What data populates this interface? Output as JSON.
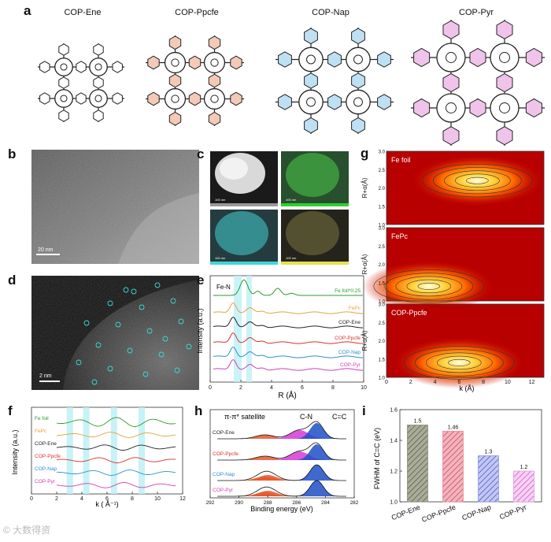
{
  "panels": {
    "a": {
      "label": "a",
      "titles": [
        {
          "text": "COP-Ene",
          "color": "#222222",
          "tint": "#ffffff"
        },
        {
          "text": "COP-Ppcfe",
          "color": "#d9312c",
          "tint": "#f3c9b8"
        },
        {
          "text": "COP-Nap",
          "color": "#3aa3d6",
          "tint": "#bfe0f2"
        },
        {
          "text": "COP-Pyr",
          "color": "#d23fb6",
          "tint": "#efc3ea"
        }
      ]
    },
    "b": {
      "label": "b",
      "scalebar": "20 nm"
    },
    "c": {
      "label": "c",
      "scalebar": "100 nm",
      "tiles": [
        {
          "color": "#2a2a2a",
          "bar": "#bbbbbb"
        },
        {
          "color": "#1c6a1c",
          "bar": "#2fd12f"
        },
        {
          "color": "#1f5a5a",
          "bar": "#3fd7d7"
        },
        {
          "color": "#2d2a14",
          "bar": "#e6e14a"
        }
      ]
    },
    "d": {
      "label": "d",
      "scalebar": "2 nm"
    },
    "e": {
      "label": "e",
      "annotation": "Fe-N",
      "xlabel": "R (Å)",
      "ylabel": "Intensity (a.u.)",
      "xticks": [
        "0",
        "2",
        "4",
        "6",
        "8",
        "10"
      ]
    },
    "f": {
      "label": "f",
      "xlabel": "k ( Å⁻¹)",
      "ylabel": "Intensity (a.u.)",
      "xticks": [
        "0",
        "2",
        "4",
        "6",
        "8",
        "10",
        "12"
      ]
    },
    "g": {
      "label": "g",
      "xlabel": "k (Å)",
      "ylabel": "R+α(Å)",
      "xticks": [
        "0",
        "2",
        "4",
        "6",
        "8",
        "10",
        "12"
      ],
      "yticks": [
        "1.0",
        "1.5",
        "2.0",
        "2.5",
        "3.0"
      ],
      "maps": [
        {
          "label": "Fe foil",
          "peak_k": 7.5,
          "peak_r": 2.2
        },
        {
          "label": "FePc",
          "peak_k": 3.5,
          "peak_r": 1.4
        },
        {
          "label": "COP-Ppcfe",
          "peak_k": 6.0,
          "peak_r": 1.4
        }
      ]
    },
    "h": {
      "label": "h",
      "xlabel": "Binding energy (eV)",
      "xticks": [
        "292",
        "290",
        "288",
        "286",
        "284",
        "282"
      ],
      "annotations": [
        "π-π* satellite",
        "C-N",
        "C=C"
      ]
    },
    "i": {
      "label": "i",
      "ylabel": "FWHM of C=C (eV)",
      "yticks": [
        "1.0",
        "1.2",
        "1.4",
        "1.6"
      ]
    }
  },
  "chart_data": [
    {
      "type": "line",
      "panel": "e",
      "xlabel": "R (Å)",
      "ylabel": "Intensity (a.u.)",
      "xlim": [
        0,
        10
      ],
      "series": [
        {
          "name": "Fe foil*0.25",
          "color": "#2e9a2e",
          "peak_r": 2.2
        },
        {
          "name": "FePc",
          "color": "#e6a23c",
          "peak_r": 1.5
        },
        {
          "name": "COP-Ene",
          "color": "#222222",
          "peak_r": 1.5
        },
        {
          "name": "COP-Ppcfe",
          "color": "#d9312c",
          "peak_r": 1.5
        },
        {
          "name": "COP-Nap",
          "color": "#2e8fd0",
          "peak_r": 1.5
        },
        {
          "name": "COP-Pyr",
          "color": "#d23fb6",
          "peak_r": 1.5
        }
      ]
    },
    {
      "type": "line",
      "panel": "f",
      "xlabel": "k ( Å⁻¹)",
      "ylabel": "Intensity (a.u.)",
      "xlim": [
        0,
        12
      ],
      "series": [
        {
          "name": "Fe foil",
          "color": "#2e9a2e"
        },
        {
          "name": "FePc",
          "color": "#e6a23c"
        },
        {
          "name": "COP-Ene",
          "color": "#222222"
        },
        {
          "name": "COP-Ppcfe",
          "color": "#d9312c"
        },
        {
          "name": "COP-Nap",
          "color": "#2e8fd0"
        },
        {
          "name": "COP-Pyr",
          "color": "#d23fb6"
        }
      ]
    },
    {
      "type": "area",
      "panel": "h",
      "xlabel": "Binding energy (eV)",
      "xlim": [
        292,
        282
      ],
      "series": [
        {
          "name": "COP-Ene",
          "color": "#222222",
          "cc_peak": 284.6,
          "cn_peak": 285.8
        },
        {
          "name": "COP-Ppcfe",
          "color": "#d9312c",
          "cc_peak": 284.6,
          "cn_peak": 285.8
        },
        {
          "name": "COP-Nap",
          "color": "#2e8fd0",
          "cc_peak": 284.6,
          "cn_peak": 288.0
        },
        {
          "name": "COP-Pyr",
          "color": "#d23fb6",
          "cc_peak": 284.6,
          "cn_peak": 288.0
        }
      ]
    },
    {
      "type": "bar",
      "panel": "i",
      "ylabel": "FWHM of C=C (eV)",
      "ylim": [
        1.0,
        1.6
      ],
      "categories": [
        "COP-Ene",
        "COP-Ppcfe",
        "COP-Nap",
        "COP-Pyr"
      ],
      "values": [
        1.5,
        1.46,
        1.3,
        1.2
      ],
      "value_labels": [
        "1.5",
        "1.46",
        "1.3",
        "1.2"
      ],
      "colors": [
        "#8a8f7a",
        "#e88d9b",
        "#8f98e6",
        "#e79ae3"
      ]
    }
  ],
  "watermark": "© 大数得资"
}
